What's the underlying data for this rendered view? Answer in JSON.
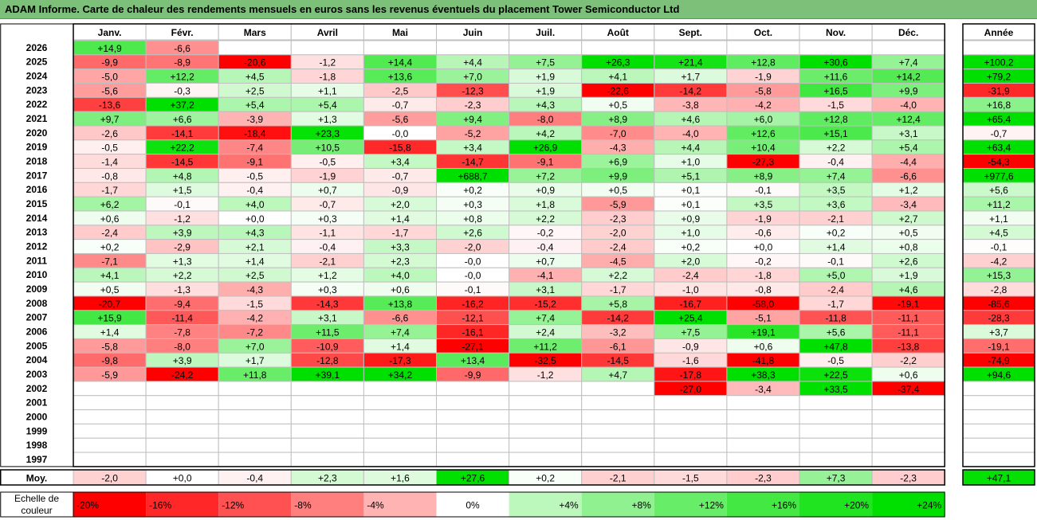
{
  "title": "ADAM Informe. Carte de chaleur des rendements mensuels en euros sans les revenus éventuels du placement Tower Semiconductor Ltd",
  "colors": {
    "title_bg": "#7DC07A",
    "positive_max": "#00E000",
    "negative_max": "#FF0000",
    "neutral": "#FFFFFF",
    "grid": "#BFBFBF",
    "frame": "#000000"
  },
  "chart_data": {
    "type": "heatmap",
    "months": [
      "Janv.",
      "Févr.",
      "Mars",
      "Avril",
      "Mai",
      "Juin",
      "Juil.",
      "Août",
      "Sept.",
      "Oct.",
      "Nov.",
      "Déc."
    ],
    "year_header": "Année",
    "years": [
      "2026",
      "2025",
      "2024",
      "2023",
      "2022",
      "2021",
      "2020",
      "2019",
      "2018",
      "2017",
      "2016",
      "2015",
      "2014",
      "2013",
      "2012",
      "2011",
      "2010",
      "2009",
      "2008",
      "2007",
      "2006",
      "2005",
      "2004",
      "2003",
      "2002",
      "2001",
      "2000",
      "1999",
      "1998",
      "1997"
    ],
    "values": [
      [
        "+14,9",
        "-6,6",
        "",
        "",
        "",
        "",
        "",
        "",
        "",
        "",
        "",
        ""
      ],
      [
        "-9,9",
        "-8,9",
        "-20,6",
        "-1,2",
        "+14,4",
        "+4,4",
        "+7,5",
        "+26,3",
        "+21,4",
        "+12,8",
        "+30,6",
        "+7,4"
      ],
      [
        "-5,0",
        "+12,2",
        "+4,5",
        "-1,8",
        "+13,6",
        "+7,0",
        "+1,9",
        "+4,1",
        "+1,7",
        "-1,9",
        "+11,6",
        "+14,2"
      ],
      [
        "-5,6",
        "-0,3",
        "+2,5",
        "+1,1",
        "-2,5",
        "-12,3",
        "+1,9",
        "-22,6",
        "-14,2",
        "-5,8",
        "+16,5",
        "+9,9"
      ],
      [
        "-13,6",
        "+37,2",
        "+5,4",
        "+5,4",
        "-0,7",
        "-2,3",
        "+4,3",
        "+0,5",
        "-3,8",
        "-4,2",
        "-1,5",
        "-4,0"
      ],
      [
        "+9,7",
        "+6,6",
        "-3,9",
        "+1,3",
        "-5,6",
        "+9,4",
        "-8,0",
        "+8,9",
        "+4,6",
        "+6,0",
        "+12,8",
        "+12,4"
      ],
      [
        "-2,6",
        "-14,1",
        "-18,4",
        "+23,3",
        "-0,0",
        "-5,2",
        "+4,2",
        "-7,0",
        "-4,0",
        "+12,6",
        "+15,1",
        "+3,1"
      ],
      [
        "-0,5",
        "+22,2",
        "-7,4",
        "+10,5",
        "-15,8",
        "+3,4",
        "+26,9",
        "-4,3",
        "+4,4",
        "+10,4",
        "+2,2",
        "+5,4"
      ],
      [
        "-1,4",
        "-14,5",
        "-9,1",
        "-0,5",
        "+3,4",
        "-14,7",
        "-9,1",
        "+6,9",
        "+1,0",
        "-27,3",
        "-0,4",
        "-4,4"
      ],
      [
        "-0,8",
        "+4,8",
        "-0,5",
        "-1,9",
        "-0,7",
        "+688,7",
        "+7,2",
        "+9,9",
        "+5,1",
        "+8,9",
        "+7,4",
        "-6,6"
      ],
      [
        "-1,7",
        "+1,5",
        "-0,4",
        "+0,7",
        "-0,9",
        "+0,2",
        "+0,9",
        "+0,5",
        "+0,1",
        "-0,1",
        "+3,5",
        "+1,2"
      ],
      [
        "+6,2",
        "-0,1",
        "+4,0",
        "-0,7",
        "+2,0",
        "+0,3",
        "+1,8",
        "-5,9",
        "+0,1",
        "+3,5",
        "+3,6",
        "-3,4"
      ],
      [
        "+0,6",
        "-1,2",
        "+0,0",
        "+0,3",
        "+1,4",
        "+0,8",
        "+2,2",
        "-2,3",
        "+0,9",
        "-1,9",
        "-2,1",
        "+2,7"
      ],
      [
        "-2,4",
        "+3,9",
        "+4,3",
        "-1,1",
        "-1,7",
        "+2,6",
        "-0,2",
        "-2,0",
        "+1,0",
        "-0,6",
        "+0,2",
        "+0,5"
      ],
      [
        "+0,2",
        "-2,9",
        "+2,1",
        "-0,4",
        "+3,3",
        "-2,0",
        "-0,4",
        "-2,4",
        "+0,2",
        "+0,0",
        "+1,4",
        "+0,8"
      ],
      [
        "-7,1",
        "+1,3",
        "+1,4",
        "-2,1",
        "+2,3",
        "-0,0",
        "+0,7",
        "-4,5",
        "+2,0",
        "-0,2",
        "-0,1",
        "+2,6"
      ],
      [
        "+4,1",
        "+2,2",
        "+2,5",
        "+1,2",
        "+4,0",
        "-0,0",
        "-4,1",
        "+2,2",
        "-2,4",
        "-1,8",
        "+5,0",
        "+1,9"
      ],
      [
        "+0,5",
        "-1,3",
        "-4,3",
        "+0,3",
        "+0,6",
        "-0,1",
        "+3,1",
        "-1,7",
        "-1,0",
        "-0,8",
        "-2,4",
        "+4,6"
      ],
      [
        "-20,7",
        "-9,4",
        "-1,5",
        "-14,3",
        "+13,8",
        "-16,2",
        "-15,2",
        "+5,8",
        "-16,7",
        "-58,0",
        "-1,7",
        "-19,1"
      ],
      [
        "+15,9",
        "-11,4",
        "-4,2",
        "+3,1",
        "-6,6",
        "-12,1",
        "+7,4",
        "-14,2",
        "+25,4",
        "-5,1",
        "-11,8",
        "-11,1"
      ],
      [
        "+1,4",
        "-7,8",
        "-7,2",
        "+11,5",
        "+7,4",
        "-16,1",
        "+2,4",
        "-3,2",
        "+7,5",
        "+19,1",
        "+5,6",
        "-11,1"
      ],
      [
        "-5,8",
        "-8,0",
        "+7,0",
        "-10,9",
        "+1,4",
        "-27,1",
        "+11,2",
        "-6,1",
        "-0,9",
        "+0,6",
        "+47,8",
        "-13,8"
      ],
      [
        "-9,8",
        "+3,9",
        "+1,7",
        "-12,8",
        "-17,3",
        "+13,4",
        "-32,5",
        "-14,5",
        "-1,6",
        "-41,8",
        "-0,5",
        "-2,2"
      ],
      [
        "-5,9",
        "-24,2",
        "+11,8",
        "+39,1",
        "+34,2",
        "-9,9",
        "-1,2",
        "+4,7",
        "-17,8",
        "+38,3",
        "+22,5",
        "+0,6"
      ],
      [
        "",
        "",
        "",
        "",
        "",
        "",
        "",
        "",
        "-27,0",
        "-3,4",
        "+33,5",
        "-37,4"
      ],
      [
        "",
        "",
        "",
        "",
        "",
        "",
        "",
        "",
        "",
        "",
        "",
        ""
      ],
      [
        "",
        "",
        "",
        "",
        "",
        "",
        "",
        "",
        "",
        "",
        "",
        ""
      ],
      [
        "",
        "",
        "",
        "",
        "",
        "",
        "",
        "",
        "",
        "",
        "",
        ""
      ],
      [
        "",
        "",
        "",
        "",
        "",
        "",
        "",
        "",
        "",
        "",
        "",
        ""
      ],
      [
        "",
        "",
        "",
        "",
        "",
        "",
        "",
        "",
        "",
        "",
        "",
        ""
      ]
    ],
    "annual": [
      "",
      "+100,2",
      "+79,2",
      "-31,9",
      "+16,8",
      "+65,4",
      "-0,7",
      "+63,4",
      "-54,3",
      "+977,6",
      "+5,6",
      "+11,2",
      "+1,1",
      "+4,5",
      "-0,1",
      "-4,2",
      "+15,3",
      "-2,8",
      "-85,6",
      "-28,3",
      "+3,7",
      "-19,1",
      "-74,9",
      "+94,6",
      "",
      "",
      "",
      "",
      "",
      ""
    ],
    "average_label": "Moy.",
    "averages": [
      "-2,0",
      "+0,0",
      "-0,4",
      "+2,3",
      "+1,6",
      "+27,6",
      "+0,2",
      "-2,1",
      "-1,5",
      "-2,3",
      "+7,3",
      "-2,3"
    ],
    "average_annual": "+47,1",
    "scale_label": [
      "Echelle de",
      "couleur"
    ],
    "scale_values": [
      -20,
      -16,
      -12,
      -8,
      -4,
      0,
      4,
      8,
      12,
      16,
      20,
      24
    ],
    "scale_labels": [
      "-20%",
      "-16%",
      "-12%",
      "-8%",
      "-4%",
      "0%",
      "+4%",
      "+8%",
      "+12%",
      "+16%",
      "+20%",
      "+24%"
    ]
  }
}
